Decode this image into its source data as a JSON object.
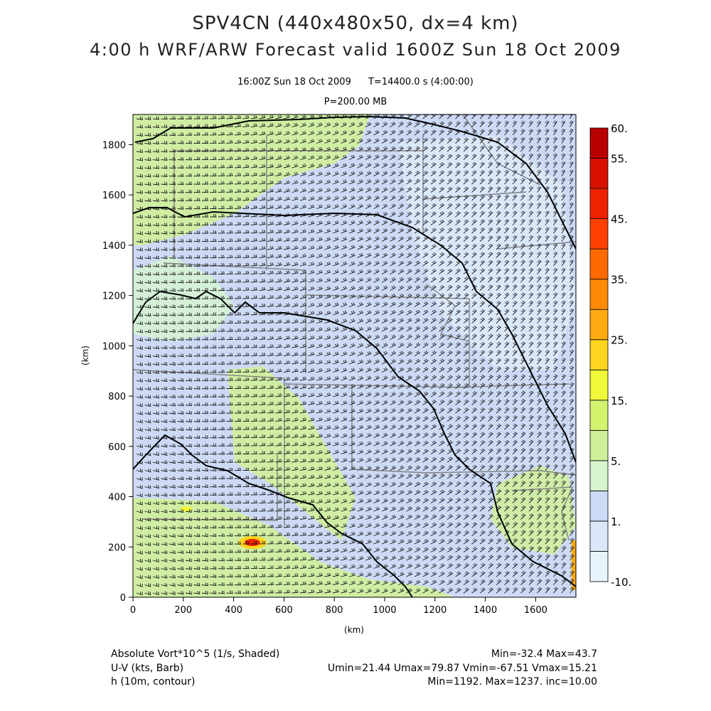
{
  "title_line1": "SPV4CN (440x480x50, dx=4 km)",
  "title_line2": "4:00 h WRF/ARW Forecast valid 1600Z Sun 18 Oct 2009",
  "subtitle_time": "16:00Z Sun 18 Oct 2009",
  "subtitle_t": "T=14400.0 s (4:00:00)",
  "subtitle_level": "P=200.00 MB",
  "footer": {
    "vort_label": "Absolute Vort*10^5 (1/s, Shaded)",
    "vort_range": "Min=-32.4 Max=43.7",
    "wind_label": "U-V (kts, Barb)",
    "wind_range": "Umin=21.44 Umax=79.87 Vmin=-67.51 Vmax=15.21",
    "h_label": "h (10m, contour)",
    "h_range": "Min=1192. Max=1237. inc=10.00"
  },
  "colors": {
    "land_fill": "#c8d7f0",
    "green_fill": "#cfee8c",
    "border_line": "#808080",
    "contour_line": "#000000",
    "barb_line": "#1a1a1a"
  },
  "chart_data": {
    "type": "heatmap",
    "xlabel": "(km)",
    "ylabel": "(km)",
    "xlim": [
      0,
      1760
    ],
    "ylim": [
      0,
      1920
    ],
    "xticks": [
      0,
      200,
      400,
      600,
      800,
      1000,
      1200,
      1400,
      1600
    ],
    "yticks": [
      0,
      200,
      400,
      600,
      800,
      1000,
      1200,
      1400,
      1600,
      1800
    ],
    "colorbar": {
      "levels": [
        -10,
        1,
        5,
        15,
        25,
        35,
        45,
        55,
        60
      ],
      "labels": [
        "-10.",
        "1.",
        "5.",
        "15.",
        "25.",
        "35.",
        "45.",
        "55.",
        "60."
      ],
      "bins": [
        {
          "from": -10,
          "to": -5,
          "color": "#e8f4fc"
        },
        {
          "from": -5,
          "to": 1,
          "color": "#dce8fa"
        },
        {
          "from": 1,
          "to": 3,
          "color": "#ccdaf6"
        },
        {
          "from": 3,
          "to": 5,
          "color": "#d6f5cf"
        },
        {
          "from": 5,
          "to": 10,
          "color": "#cfef9a"
        },
        {
          "from": 10,
          "to": 15,
          "color": "#d4f26e"
        },
        {
          "from": 15,
          "to": 20,
          "color": "#f0f83a"
        },
        {
          "from": 20,
          "to": 25,
          "color": "#ffd41f"
        },
        {
          "from": 25,
          "to": 30,
          "color": "#ffaa10"
        },
        {
          "from": 30,
          "to": 35,
          "color": "#ff8a05"
        },
        {
          "from": 35,
          "to": 40,
          "color": "#ff6a00"
        },
        {
          "from": 40,
          "to": 45,
          "color": "#ff4000"
        },
        {
          "from": 45,
          "to": 50,
          "color": "#ee2200"
        },
        {
          "from": 50,
          "to": 55,
          "color": "#d81000"
        },
        {
          "from": 55,
          "to": 60,
          "color": "#b80000"
        }
      ]
    },
    "vorticity_min": -32.4,
    "vorticity_max": 43.7,
    "height_contours_10m": {
      "min": 1192,
      "max": 1237,
      "interval": 10
    },
    "wind": {
      "umin": 21.44,
      "umax": 79.87,
      "vmin": -67.51,
      "vmax": 15.21
    }
  }
}
